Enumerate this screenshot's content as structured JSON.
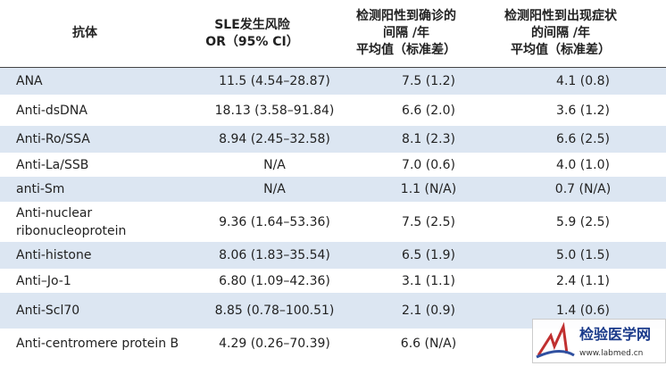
{
  "table": {
    "header": [
      [
        "抗体"
      ],
      [
        "SLE发生风险",
        "OR（95% CI）"
      ],
      [
        "检测阳性到确诊的",
        "间隔 /年",
        "平均值（标准差）"
      ],
      [
        "检测阳性到出现症状",
        "的间隔 /年",
        "平均值（标准差）"
      ]
    ],
    "rows": [
      [
        [
          "ANA"
        ],
        "11.5 (4.54–28.87)",
        "7.5 (1.2)",
        "4.1 (0.8)"
      ],
      [
        [
          "Anti-dsDNA"
        ],
        "18.13 (3.58–91.84)",
        "6.6 (2.0)",
        "3.6 (1.2)"
      ],
      [
        [
          "Anti-Ro/SSA"
        ],
        "8.94 (2.45–32.58)",
        "8.1 (2.3)",
        "6.6 (2.5)"
      ],
      [
        [
          "Anti-La/SSB"
        ],
        "N/A",
        "7.0 (0.6)",
        "4.0 (1.0)"
      ],
      [
        [
          "anti-Sm"
        ],
        "N/A",
        "1.1 (N/A)",
        "0.7 (N/A)"
      ],
      [
        [
          "Anti-nuclear",
          "ribonucleoprotein"
        ],
        "9.36 (1.64–53.36)",
        "7.5 (2.5)",
        "5.9 (2.5)"
      ],
      [
        [
          "Anti-histone"
        ],
        "8.06 (1.83–35.54)",
        "6.5 (1.9)",
        "5.0 (1.5)"
      ],
      [
        [
          "Anti–Jo-1"
        ],
        "6.80 (1.09–42.36)",
        "3.1 (1.1)",
        "2.4 (1.1)"
      ],
      [
        [
          "Anti-Scl70"
        ],
        "8.85 (0.78–100.51)",
        "2.1 (0.9)",
        "1.4 (0.6)"
      ],
      [
        [
          "Anti-centromere protein B"
        ],
        "4.29 (0.26–70.39)",
        "6.6 (N/A)"
      ]
    ]
  },
  "watermark": {
    "title": "检验医学网",
    "url": "www.labmed.cn"
  }
}
